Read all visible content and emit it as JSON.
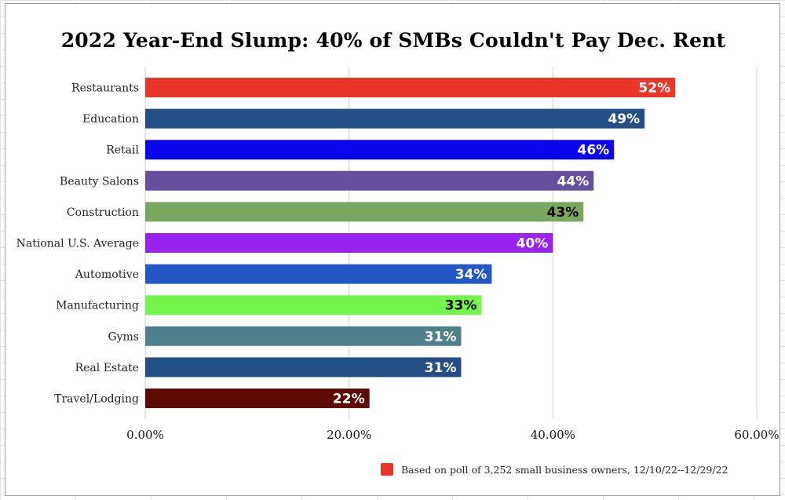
{
  "chart_data": {
    "type": "bar",
    "orientation": "horizontal",
    "title": "2022 Year-End Slump: 40% of SMBs Couldn't Pay Dec. Rent",
    "categories": [
      "Restaurants",
      "Education",
      "Retail",
      "Beauty Salons",
      "Construction",
      "National U.S. Average",
      "Automotive",
      "Manufacturing",
      "Gyms",
      "Real Estate",
      "Travel/Lodging"
    ],
    "values": [
      52,
      49,
      46,
      44,
      43,
      40,
      34,
      33,
      31,
      31,
      22
    ],
    "value_labels": [
      "52%",
      "49%",
      "46%",
      "44%",
      "43%",
      "40%",
      "34%",
      "33%",
      "31%",
      "31%",
      "22%"
    ],
    "bar_colors": [
      "#e8372a",
      "#234e86",
      "#0a06ec",
      "#64509e",
      "#79a75d",
      "#9a22ef",
      "#2457c6",
      "#74f54b",
      "#4e818b",
      "#234e86",
      "#5e0a04"
    ],
    "label_colors": [
      "#ffffff",
      "#ffffff",
      "#ffffff",
      "#ffffff",
      "#000000",
      "#ffffff",
      "#ffffff",
      "#000000",
      "#ffffff",
      "#ffffff",
      "#ffffff"
    ],
    "xlim": [
      0,
      60
    ],
    "xticks": [
      0,
      20,
      40,
      60
    ],
    "xtick_labels": [
      "0.00%",
      "20.00%",
      "40.00%",
      "60.00%"
    ],
    "xlabel": "",
    "ylabel": "",
    "grid": true,
    "legend": {
      "position": "bottom-right",
      "label": "Based on poll of 3,252 small business owners, 12/10/22--12/29/22",
      "color": "#e8372a"
    }
  }
}
